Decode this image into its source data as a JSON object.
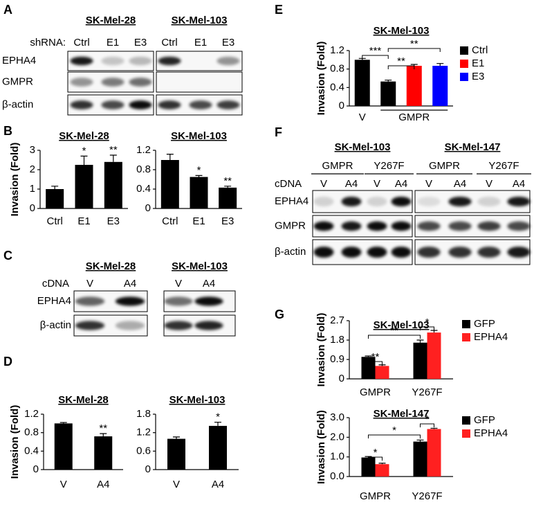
{
  "panel_labels": [
    "A",
    "B",
    "C",
    "D",
    "E",
    "F",
    "G"
  ],
  "blots": [
    {
      "row_header": "shRNA:",
      "rows": [
        "EPHA4",
        "GMPR",
        "β-actin"
      ],
      "groups": [
        {
          "title": "SK-Mel-28",
          "lanes": [
            "Ctrl",
            "E1",
            "E3"
          ]
        },
        {
          "title": "SK-Mel-103",
          "lanes": [
            "Ctrl",
            "E1",
            "E3"
          ]
        }
      ]
    },
    {
      "row_header": "cDNA",
      "rows": [
        "EPHA4",
        "β-actin"
      ],
      "groups": [
        {
          "title": "SK-Mel-28",
          "lanes": [
            "V",
            "A4"
          ]
        },
        {
          "title": "SK-Mel-103",
          "lanes": [
            "V",
            "A4"
          ]
        }
      ]
    },
    {
      "row_header": "cDNA",
      "rows": [
        "EPHA4",
        "GMPR",
        "β-actin"
      ],
      "groups": [
        {
          "title": "SK-Mel-103",
          "subgroups": [
            "GMPR",
            "Y267F"
          ],
          "lanes": [
            "V",
            "A4",
            "V",
            "A4"
          ]
        },
        {
          "title": "SK-Mel-147",
          "subgroups": [
            "GMPR",
            "Y267F"
          ],
          "lanes": [
            "V",
            "A4",
            "V",
            "A4"
          ]
        }
      ]
    }
  ],
  "chart_data": [
    {
      "type": "bar",
      "title": "SK-Mel-28",
      "ylabel": "Invasion (Fold)",
      "categories": [
        "Ctrl",
        "E1",
        "E3"
      ],
      "values": [
        1,
        2.25,
        2.4
      ],
      "errors": [
        0.15,
        0.45,
        0.35
      ],
      "color": "#000000",
      "ylim": [
        0,
        3
      ],
      "yticks": [
        0,
        1,
        2,
        3
      ],
      "annotations": [
        "*",
        "**"
      ]
    },
    {
      "type": "bar",
      "title": "SK-Mel-103",
      "categories": [
        "Ctrl",
        "E1",
        "E3"
      ],
      "values": [
        1,
        0.65,
        0.43
      ],
      "errors": [
        0.12,
        0.03,
        0.03
      ],
      "color": "#000000",
      "ylim": [
        0,
        1.2
      ],
      "yticks": [
        0,
        0.4,
        0.8,
        1.2
      ],
      "annotations": [
        "*",
        "**"
      ]
    },
    {
      "type": "bar",
      "title": "SK-Mel-28",
      "ylabel": "Invasion (Fold)",
      "categories": [
        "V",
        "A4"
      ],
      "values": [
        1,
        0.72
      ],
      "errors": [
        0.02,
        0.06
      ],
      "color": "#000000",
      "ylim": [
        0,
        1.2
      ],
      "yticks": [
        0,
        0.4,
        0.8,
        1.2
      ],
      "annotations": [
        "**"
      ]
    },
    {
      "type": "bar",
      "title": "SK-Mel-103",
      "categories": [
        "V",
        "A4"
      ],
      "values": [
        1,
        1.42
      ],
      "errors": [
        0.06,
        0.12
      ],
      "color": "#000000",
      "ylim": [
        0,
        1.8
      ],
      "yticks": [
        0,
        0.6,
        1.2,
        1.8
      ],
      "annotations": [
        "*"
      ]
    },
    {
      "type": "bar",
      "title": "SK-Mel-103",
      "ylabel": "Invasion (Fold)",
      "categories": [
        "V",
        "GMPR"
      ],
      "series": [
        {
          "name": "Ctrl",
          "color": "#000000",
          "values": [
            1.0,
            0.53
          ],
          "errors": [
            0.03,
            0.03
          ]
        },
        {
          "name": "E1",
          "color": "#ff0000",
          "values": [
            null,
            0.87
          ],
          "errors": [
            null,
            0.03
          ]
        },
        {
          "name": "E3",
          "color": "#0000ff",
          "values": [
            null,
            0.87
          ],
          "errors": [
            null,
            0.05
          ]
        }
      ],
      "ylim": [
        0,
        1.2
      ],
      "yticks": [
        0,
        0.4,
        0.8,
        1.2
      ],
      "annotations": [
        "***",
        "**",
        "**"
      ]
    },
    {
      "type": "bar",
      "title": "SK-Mel-103",
      "ylabel": "Invasion (Fold)",
      "categories": [
        "GMPR",
        "Y267F"
      ],
      "series": [
        {
          "name": "GFP",
          "color": "#000000",
          "values": [
            1.02,
            1.68
          ],
          "errors": [
            0.04,
            0.12
          ]
        },
        {
          "name": "EPHA4",
          "color": "#ff2020",
          "values": [
            0.6,
            2.15
          ],
          "errors": [
            0.05,
            0.1
          ]
        }
      ],
      "ylim": [
        0,
        2.7
      ],
      "yticks": [
        0,
        0.9,
        1.8,
        2.7
      ],
      "annotations": [
        "**",
        "*",
        "**"
      ]
    },
    {
      "type": "bar",
      "title": "SK-Mel-147",
      "ylabel": "Invasion (Fold)",
      "categories": [
        "GMPR",
        "Y267F"
      ],
      "series": [
        {
          "name": "GFP",
          "color": "#000000",
          "values": [
            0.97,
            1.78
          ],
          "errors": [
            0.05,
            0.08
          ]
        },
        {
          "name": "EPHA4",
          "color": "#ff2020",
          "values": [
            0.63,
            2.42
          ],
          "errors": [
            0.05,
            0.04
          ]
        }
      ],
      "ylim": [
        0,
        3
      ],
      "yticks": [
        {
          "value": 0,
          "label": "0.0"
        },
        {
          "value": 1,
          "label": "1.0"
        },
        {
          "value": 2,
          "label": "2.0"
        },
        {
          "value": 3,
          "label": "3.0"
        }
      ],
      "annotations": [
        "*",
        "*",
        "*"
      ]
    }
  ]
}
